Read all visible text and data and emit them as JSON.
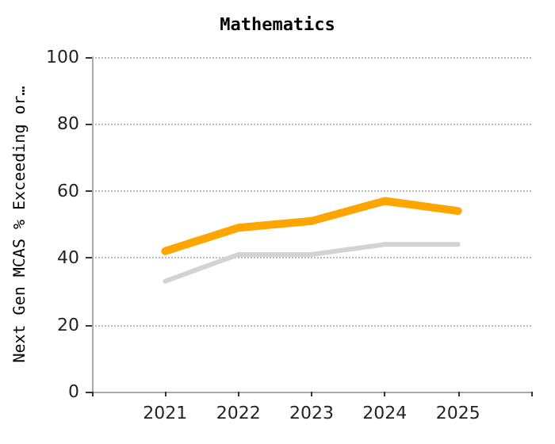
{
  "chart_data": {
    "type": "line",
    "title": "Mathematics",
    "ylabel": "Next Gen MCAS % Exceeding or…",
    "x": [
      2021,
      2022,
      2023,
      2024,
      2025
    ],
    "xlim": [
      2020,
      2026
    ],
    "xticks": [
      {
        "value": 2020,
        "label": null
      },
      2021,
      2022,
      2023,
      2024,
      2025,
      {
        "value": 2026,
        "label": null
      }
    ],
    "ylim": [
      0,
      100
    ],
    "yticks": [
      0,
      20,
      40,
      60,
      80,
      100
    ],
    "grid": "y",
    "marker": "none",
    "line_style": "solid",
    "series": [
      {
        "color": "#ffa500",
        "values": [
          42,
          49,
          51,
          57,
          54
        ]
      },
      {
        "color": "#d3d3d3",
        "values": [
          33,
          41,
          41,
          44,
          44
        ]
      }
    ]
  }
}
